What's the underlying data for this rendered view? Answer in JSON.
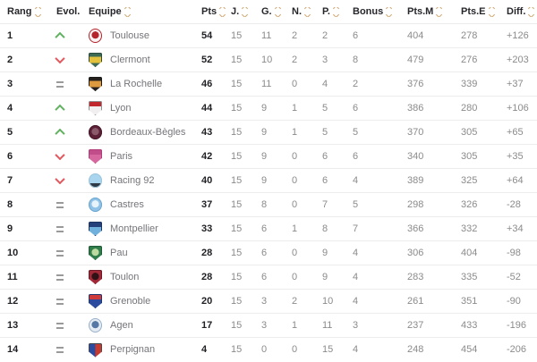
{
  "colors": {
    "sort": "#cfa76f",
    "up": "#63b262",
    "down": "#e05a60",
    "equal": "#9a9a9a",
    "header_text": "#26262b",
    "value_text": "#8b8b8b",
    "strong_text": "#1f1f24",
    "team_text": "#75757a",
    "divider": "#ececec"
  },
  "table": {
    "columns": [
      {
        "key": "rang",
        "label": "Rang",
        "sortable": true
      },
      {
        "key": "evol",
        "label": "Evol.",
        "sortable": false
      },
      {
        "key": "equipe",
        "label": "Equipe",
        "sortable": true
      },
      {
        "key": "pts",
        "label": "Pts",
        "sortable": true
      },
      {
        "key": "j",
        "label": "J.",
        "sortable": true
      },
      {
        "key": "g",
        "label": "G.",
        "sortable": true
      },
      {
        "key": "n",
        "label": "N.",
        "sortable": true
      },
      {
        "key": "p",
        "label": "P.",
        "sortable": true
      },
      {
        "key": "bonus",
        "label": "Bonus",
        "sortable": true
      },
      {
        "key": "ptsm",
        "label": "Pts.M",
        "sortable": true
      },
      {
        "key": "ptse",
        "label": "Pts.E",
        "sortable": true
      },
      {
        "key": "diff",
        "label": "Diff.",
        "sortable": true
      }
    ],
    "rows": [
      {
        "rang": "1",
        "evol": "up",
        "equipe": "Toulouse",
        "pts": "54",
        "j": "15",
        "g": "11",
        "n": "2",
        "p": "2",
        "bonus": "6",
        "ptsm": "404",
        "ptse": "278",
        "diff": "+126",
        "logo": {
          "shape": "circle",
          "split": "dot",
          "c1": "#f9f3f3",
          "c2": "#b5232d",
          "bd": "#b5232d"
        }
      },
      {
        "rang": "2",
        "evol": "down",
        "equipe": "Clermont",
        "pts": "52",
        "j": "15",
        "g": "10",
        "n": "2",
        "p": "3",
        "bonus": "8",
        "ptsm": "479",
        "ptse": "276",
        "diff": "+203",
        "logo": {
          "shape": "shield",
          "split": "mid",
          "c1": "#3c6a55",
          "c2": "#e3c13d",
          "bd": "#2c4a3c"
        }
      },
      {
        "rang": "3",
        "evol": "eq",
        "equipe": "La Rochelle",
        "pts": "46",
        "j": "15",
        "g": "11",
        "n": "0",
        "p": "4",
        "bonus": "2",
        "ptsm": "376",
        "ptse": "339",
        "diff": "+37",
        "logo": {
          "shape": "shield",
          "split": "mid",
          "c1": "#26211d",
          "c2": "#dd9a3f",
          "bd": "#1a1a1a"
        }
      },
      {
        "rang": "4",
        "evol": "up",
        "equipe": "Lyon",
        "pts": "44",
        "j": "15",
        "g": "9",
        "n": "1",
        "p": "5",
        "bonus": "6",
        "ptsm": "386",
        "ptse": "280",
        "diff": "+106",
        "logo": {
          "shape": "shield",
          "split": "band",
          "c1": "#f2eff0",
          "c2": "#c0272d",
          "bd": "#8f8f94"
        }
      },
      {
        "rang": "5",
        "evol": "up",
        "equipe": "Bordeaux-Bègles",
        "pts": "43",
        "j": "15",
        "g": "9",
        "n": "1",
        "p": "5",
        "bonus": "5",
        "ptsm": "370",
        "ptse": "305",
        "diff": "+65",
        "logo": {
          "shape": "circle",
          "split": "dot",
          "c1": "#5c2136",
          "c2": "#8a5a6a",
          "bd": "#46182a"
        }
      },
      {
        "rang": "6",
        "evol": "down",
        "equipe": "Paris",
        "pts": "42",
        "j": "15",
        "g": "9",
        "n": "0",
        "p": "6",
        "bonus": "6",
        "ptsm": "340",
        "ptse": "305",
        "diff": "+35",
        "logo": {
          "shape": "shield",
          "split": "band",
          "c1": "#d7679f",
          "c2": "#c14d8a",
          "bd": "#b03d78"
        }
      },
      {
        "rang": "7",
        "evol": "down",
        "equipe": "Racing 92",
        "pts": "40",
        "j": "15",
        "g": "9",
        "n": "0",
        "p": "6",
        "bonus": "4",
        "ptsm": "389",
        "ptse": "325",
        "diff": "+64",
        "logo": {
          "shape": "circle",
          "split": "foot",
          "c1": "#a9d5ef",
          "c2": "#2e3a46",
          "bd": "#9cc4dd"
        }
      },
      {
        "rang": "8",
        "evol": "eq",
        "equipe": "Castres",
        "pts": "37",
        "j": "15",
        "g": "8",
        "n": "0",
        "p": "7",
        "bonus": "5",
        "ptsm": "298",
        "ptse": "326",
        "diff": "-28",
        "logo": {
          "shape": "circle",
          "split": "dot",
          "c1": "#8fc2e6",
          "c2": "#e8f2fa",
          "bd": "#6ea6cf"
        }
      },
      {
        "rang": "9",
        "evol": "eq",
        "equipe": "Montpellier",
        "pts": "33",
        "j": "15",
        "g": "6",
        "n": "1",
        "p": "8",
        "bonus": "7",
        "ptsm": "366",
        "ptse": "332",
        "diff": "+34",
        "logo": {
          "shape": "shield",
          "split": "band",
          "c1": "#6fb0dd",
          "c2": "#24407a",
          "bd": "#1c3260"
        }
      },
      {
        "rang": "10",
        "evol": "eq",
        "equipe": "Pau",
        "pts": "28",
        "j": "15",
        "g": "6",
        "n": "0",
        "p": "9",
        "bonus": "4",
        "ptsm": "306",
        "ptse": "404",
        "diff": "-98",
        "logo": {
          "shape": "shield",
          "split": "dot",
          "c1": "#2e7d4a",
          "c2": "#bcd9a0",
          "bd": "#205a36"
        }
      },
      {
        "rang": "11",
        "evol": "eq",
        "equipe": "Toulon",
        "pts": "28",
        "j": "15",
        "g": "6",
        "n": "0",
        "p": "9",
        "bonus": "4",
        "ptsm": "283",
        "ptse": "335",
        "diff": "-52",
        "logo": {
          "shape": "shield",
          "split": "dot",
          "c1": "#a02837",
          "c2": "#2e1216",
          "bd": "#6e1a26"
        }
      },
      {
        "rang": "12",
        "evol": "eq",
        "equipe": "Grenoble",
        "pts": "20",
        "j": "15",
        "g": "3",
        "n": "2",
        "p": "10",
        "bonus": "4",
        "ptsm": "261",
        "ptse": "351",
        "diff": "-90",
        "logo": {
          "shape": "shield",
          "split": "band",
          "c1": "#2c4a9e",
          "c2": "#cf3b3b",
          "bd": "#20356e"
        }
      },
      {
        "rang": "13",
        "evol": "eq",
        "equipe": "Agen",
        "pts": "17",
        "j": "15",
        "g": "3",
        "n": "1",
        "p": "11",
        "bonus": "3",
        "ptsm": "237",
        "ptse": "433",
        "diff": "-196",
        "logo": {
          "shape": "circle",
          "split": "dot",
          "c1": "#e4ebf3",
          "c2": "#5577a5",
          "bd": "#9ab0c8"
        }
      },
      {
        "rang": "14",
        "evol": "eq",
        "equipe": "Perpignan",
        "pts": "4",
        "j": "15",
        "g": "0",
        "n": "0",
        "p": "15",
        "bonus": "4",
        "ptsm": "248",
        "ptse": "454",
        "diff": "-206",
        "logo": {
          "shape": "shield",
          "split": "half",
          "c1": "#2c4a9e",
          "c2": "#c8392e",
          "bd": "#44484f"
        }
      }
    ]
  },
  "evolution_icon_names": {
    "up": "evolution-up-icon",
    "down": "evolution-down-icon",
    "eq": "evolution-equal-icon"
  }
}
